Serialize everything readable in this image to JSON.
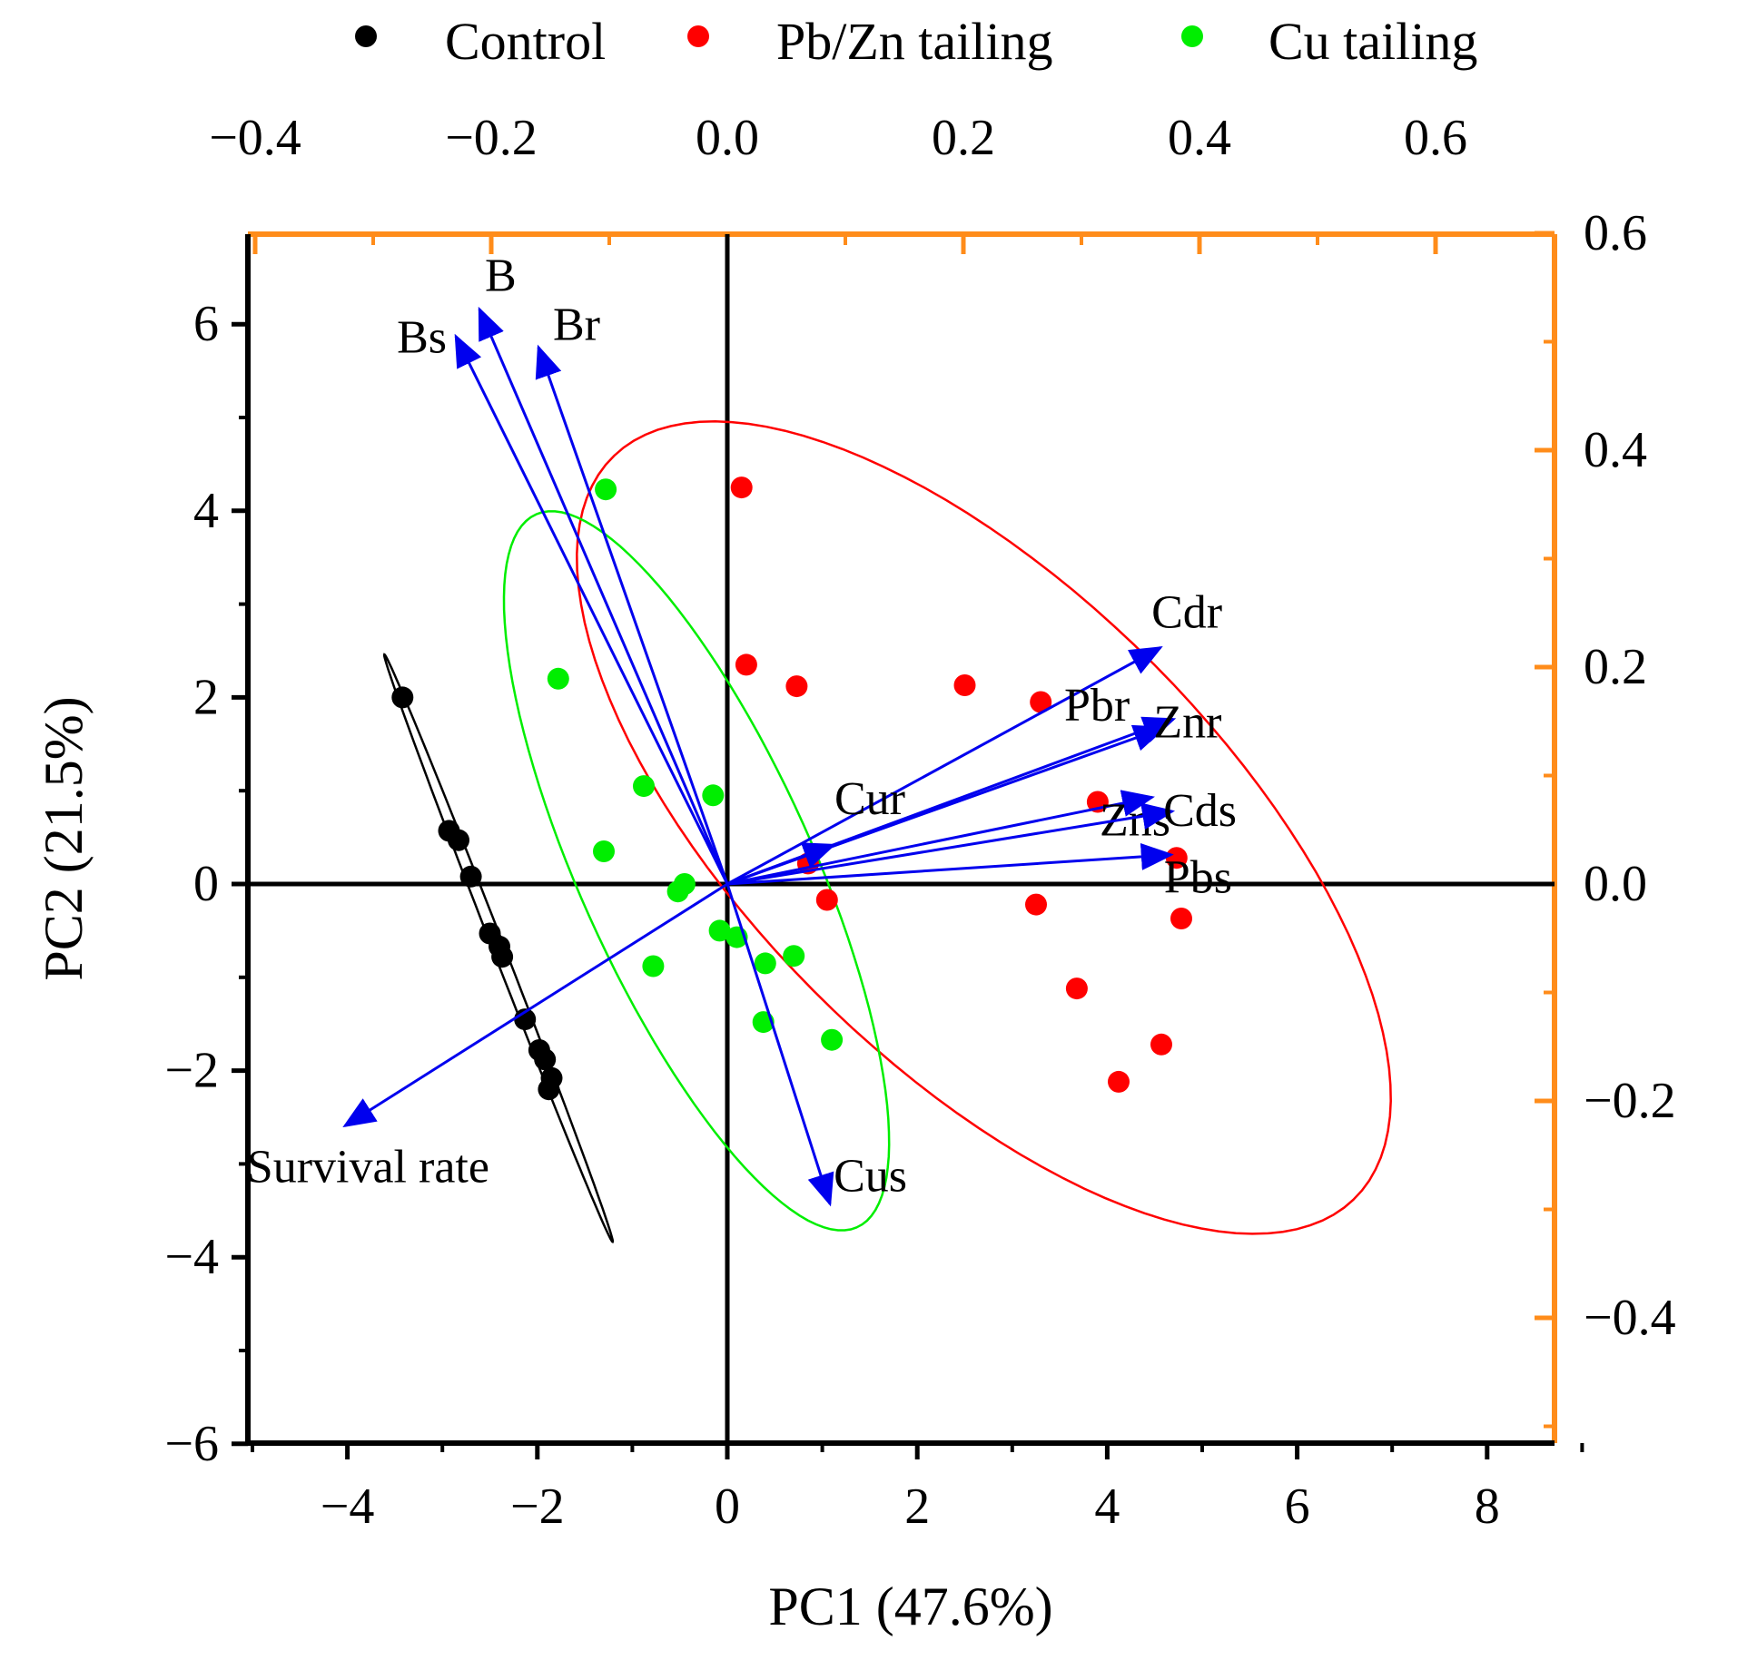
{
  "chart_data": {
    "type": "scatter",
    "title": "",
    "xlabel": "PC1 (47.6%)",
    "ylabel": "PC2 (21.5%)",
    "xlim": [
      -5,
      9
    ],
    "ylim": [
      -6,
      6.8
    ],
    "xticks": [
      -4,
      -2,
      0,
      2,
      4,
      6,
      8
    ],
    "yticks": [
      -6,
      -4,
      -2,
      0,
      2,
      4,
      6
    ],
    "loading_axes": {
      "xlim": [
        -0.4,
        0.72
      ],
      "ylim": [
        -0.52,
        0.6
      ],
      "xticks": [
        -0.4,
        -0.2,
        0.0,
        0.2,
        0.4,
        0.6
      ],
      "yticks": [
        -0.4,
        -0.2,
        0.0,
        0.2,
        0.4,
        0.6
      ],
      "color": "#ff8c1a"
    },
    "legend": {
      "position": "top",
      "entries": [
        "Control",
        "Pb/Zn tailing",
        "Cu tailing"
      ]
    },
    "series": [
      {
        "name": "Control",
        "color": "#000000",
        "points": [
          [
            -3.42,
            2.0
          ],
          [
            -2.93,
            0.57
          ],
          [
            -2.83,
            0.47
          ],
          [
            -2.7,
            0.08
          ],
          [
            -2.5,
            -0.53
          ],
          [
            -2.4,
            -0.67
          ],
          [
            -2.37,
            -0.78
          ],
          [
            -2.13,
            -1.45
          ],
          [
            -1.98,
            -1.78
          ],
          [
            -1.92,
            -1.88
          ],
          [
            -1.85,
            -2.08
          ],
          [
            -1.88,
            -2.2
          ]
        ]
      },
      {
        "name": "Pb/Zn tailing",
        "color": "#ff0000",
        "points": [
          [
            0.15,
            4.25
          ],
          [
            0.2,
            2.35
          ],
          [
            0.73,
            2.12
          ],
          [
            2.5,
            2.13
          ],
          [
            3.3,
            1.95
          ],
          [
            3.9,
            0.88
          ],
          [
            0.85,
            0.22
          ],
          [
            4.73,
            0.28
          ],
          [
            1.05,
            -0.17
          ],
          [
            3.25,
            -0.22
          ],
          [
            4.78,
            -0.37
          ],
          [
            3.68,
            -1.12
          ],
          [
            4.57,
            -1.72
          ],
          [
            4.12,
            -2.12
          ]
        ]
      },
      {
        "name": "Cu tailing",
        "color": "#00ee00",
        "points": [
          [
            -1.28,
            4.23
          ],
          [
            -1.78,
            2.2
          ],
          [
            -0.88,
            1.05
          ],
          [
            -0.15,
            0.95
          ],
          [
            -1.3,
            0.35
          ],
          [
            -0.45,
            0.0
          ],
          [
            -0.52,
            -0.08
          ],
          [
            -0.08,
            -0.5
          ],
          [
            0.1,
            -0.57
          ],
          [
            0.4,
            -0.85
          ],
          [
            0.7,
            -0.77
          ],
          [
            -0.78,
            -0.88
          ],
          [
            0.38,
            -1.48
          ],
          [
            1.1,
            -1.67
          ]
        ]
      }
    ],
    "confidence_ellipses": [
      {
        "group": "Control",
        "color": "#000000"
      },
      {
        "group": "Pb/Zn tailing",
        "color": "#ff0000"
      },
      {
        "group": "Cu tailing",
        "color": "#00ee00"
      }
    ],
    "loadings": {
      "color": "#0000ee",
      "vectors": [
        {
          "label": "B",
          "x": -0.21,
          "y": 0.53
        },
        {
          "label": "Bs",
          "x": -0.23,
          "y": 0.505
        },
        {
          "label": "Br",
          "x": -0.16,
          "y": 0.495
        },
        {
          "label": "Cdr",
          "x": 0.367,
          "y": 0.218
        },
        {
          "label": "Pbr",
          "x": 0.37,
          "y": 0.144
        },
        {
          "label": "Znr",
          "x": 0.378,
          "y": 0.152
        },
        {
          "label": "Zns",
          "x": 0.36,
          "y": 0.08
        },
        {
          "label": "Cds",
          "x": 0.377,
          "y": 0.067
        },
        {
          "label": "Pbs",
          "x": 0.376,
          "y": 0.027
        },
        {
          "label": "Cur",
          "x": 0.09,
          "y": 0.036
        },
        {
          "label": "Cus",
          "x": 0.087,
          "y": -0.295
        },
        {
          "label": "Survival rate",
          "x": -0.324,
          "y": -0.223
        }
      ]
    }
  }
}
